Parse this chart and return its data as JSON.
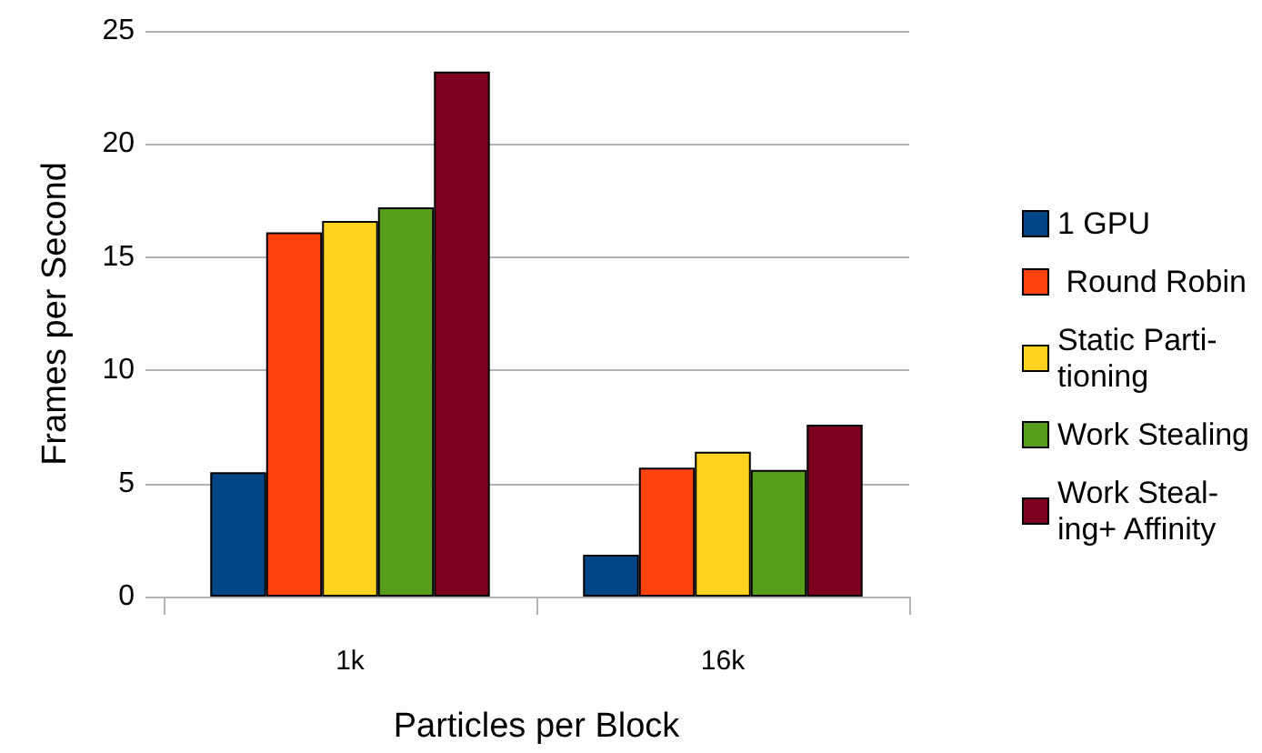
{
  "chart_data": {
    "type": "bar",
    "xlabel": "Particles per Block",
    "ylabel": "Frames per Second",
    "categories": [
      "1k",
      "16k"
    ],
    "series": [
      {
        "name": "1 GPU",
        "color": "#004586",
        "values": [
          5.5,
          1.85
        ]
      },
      {
        "name": " Round Robin",
        "color": "#ff420e",
        "values": [
          16.1,
          5.7
        ]
      },
      {
        "name": "Static Parti-\ntioning",
        "color": "#ffd320",
        "values": [
          16.6,
          6.4
        ]
      },
      {
        "name": "Work Stealing",
        "color": "#579d1c",
        "values": [
          17.2,
          5.6
        ]
      },
      {
        "name": "Work Steal-\ning+ Affinity",
        "color": "#7e0021",
        "values": [
          23.2,
          7.6
        ]
      }
    ],
    "ylim": [
      0,
      25
    ],
    "yticks": [
      0,
      5,
      10,
      15,
      20,
      25
    ],
    "grid": "y",
    "legend": "right"
  }
}
